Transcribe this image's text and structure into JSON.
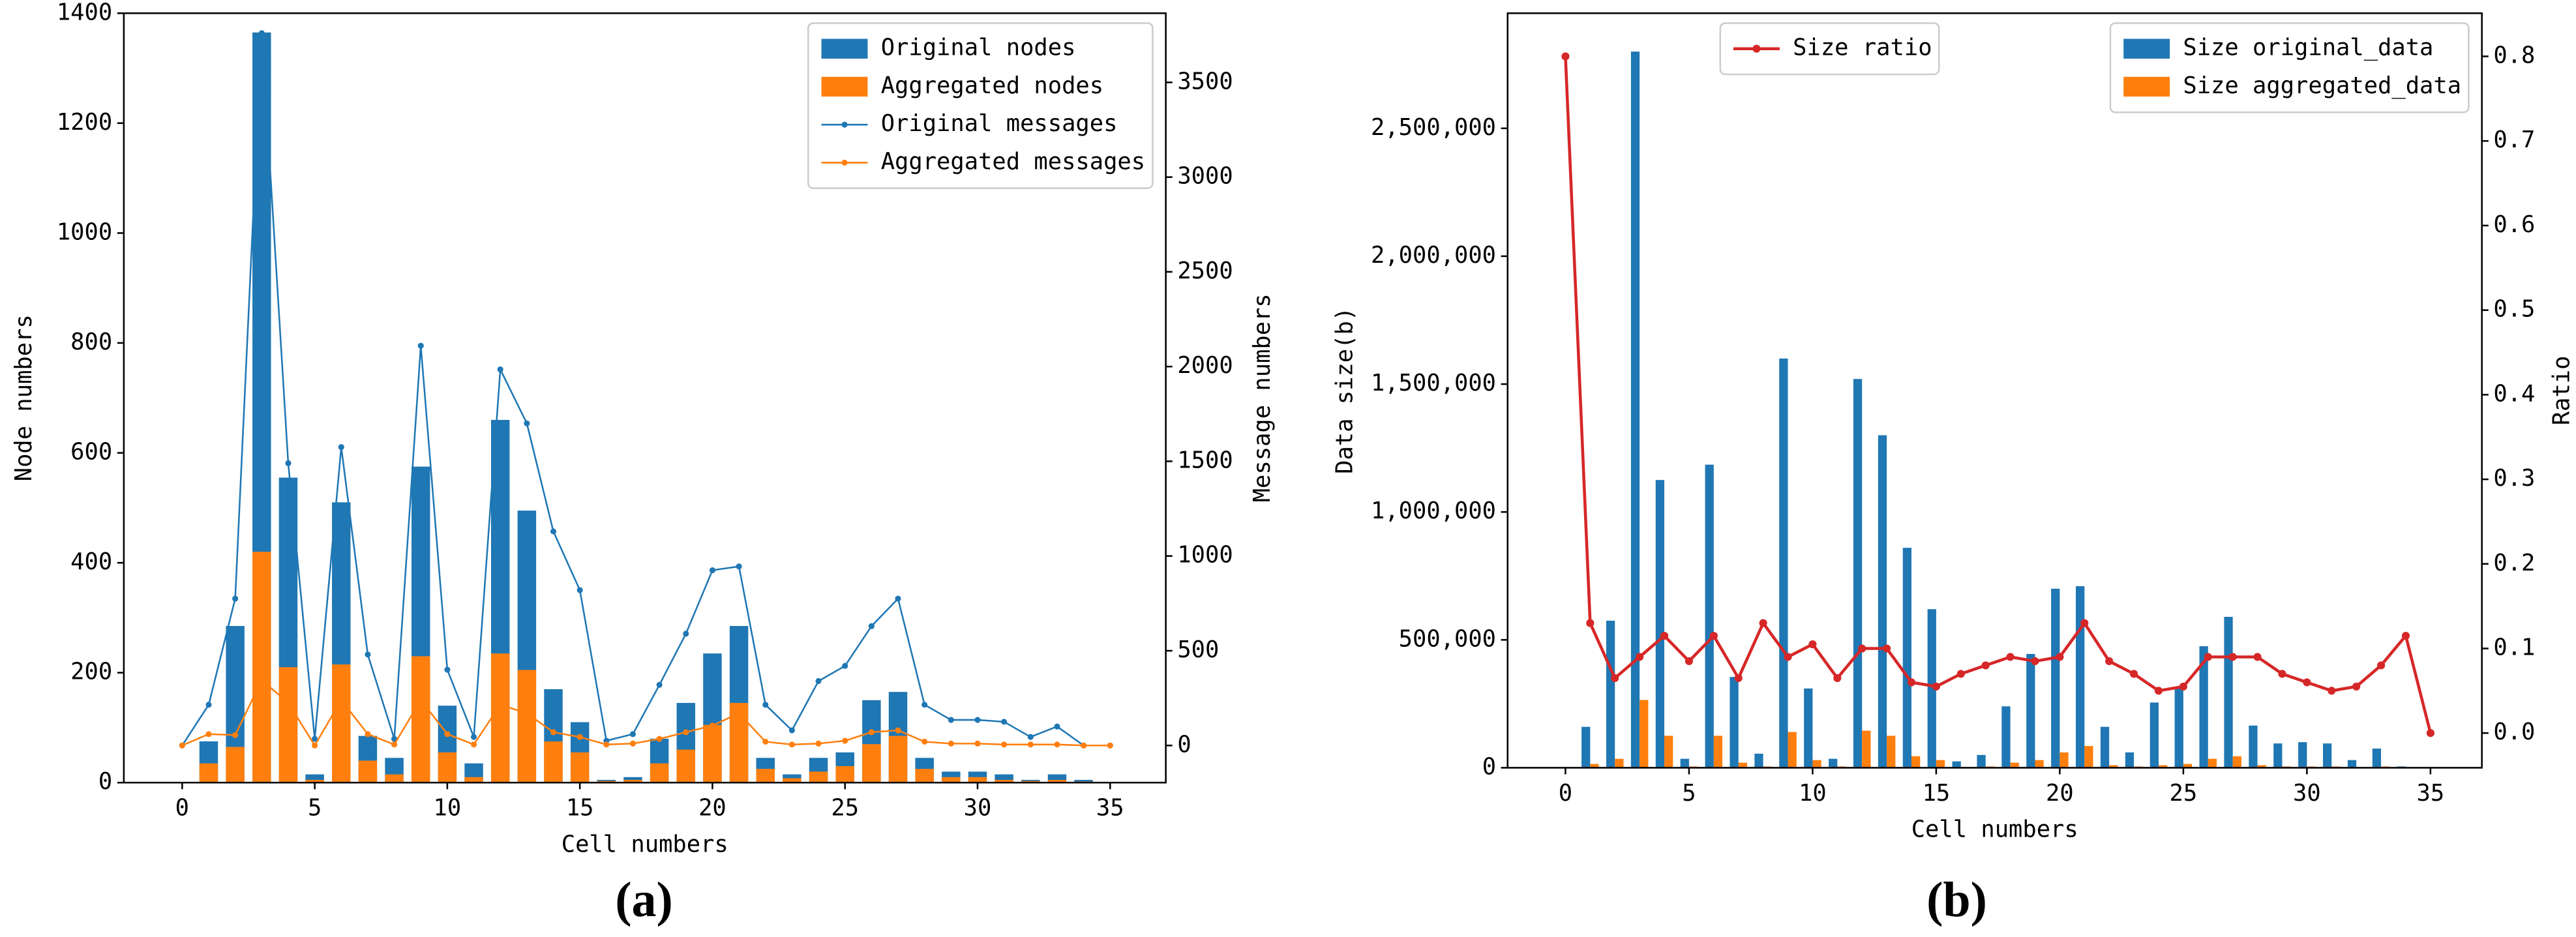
{
  "chart_data": [
    {
      "type": "bar",
      "bar_mode": "overlay",
      "caption": "(a)",
      "xlabel": "Cell numbers",
      "ylabel": "Node numbers",
      "y2label": "Message numbers",
      "x": [
        0,
        1,
        2,
        3,
        4,
        5,
        6,
        7,
        8,
        9,
        10,
        11,
        12,
        13,
        14,
        15,
        16,
        17,
        18,
        19,
        20,
        21,
        22,
        23,
        24,
        25,
        26,
        27,
        28,
        29,
        30,
        31,
        32,
        33,
        34,
        35
      ],
      "xlim": [
        -2.2,
        37.1
      ],
      "xticks": [
        0,
        5,
        10,
        15,
        20,
        25,
        30,
        35
      ],
      "ylim": [
        0,
        1400
      ],
      "yticks": [
        0,
        200,
        400,
        600,
        800,
        1000,
        1200,
        1400
      ],
      "y2lim": [
        -196,
        3865
      ],
      "y2ticks": [
        0,
        500,
        1000,
        1500,
        2000,
        2500,
        3000,
        3500
      ],
      "legend": "upper right",
      "series": [
        {
          "name": "Original nodes",
          "type": "bar",
          "color": "#1f77b4",
          "values": [
            0,
            75,
            285,
            1365,
            555,
            15,
            510,
            85,
            45,
            575,
            140,
            35,
            660,
            495,
            170,
            110,
            5,
            10,
            80,
            145,
            235,
            285,
            45,
            15,
            45,
            55,
            150,
            165,
            45,
            20,
            20,
            15,
            5,
            15,
            5,
            0
          ]
        },
        {
          "name": "Aggregated nodes",
          "type": "bar",
          "color": "#ff7f0e",
          "values": [
            0,
            35,
            65,
            420,
            210,
            5,
            215,
            40,
            15,
            230,
            55,
            10,
            235,
            205,
            75,
            55,
            3,
            5,
            35,
            60,
            105,
            145,
            25,
            8,
            20,
            30,
            70,
            85,
            25,
            10,
            10,
            5,
            3,
            5,
            2,
            0
          ]
        },
        {
          "name": "Original messages",
          "type": "line",
          "axis": "y2",
          "color": "#1f77b4",
          "values": [
            0,
            215,
            775,
            3760,
            1490,
            35,
            1575,
            480,
            35,
            2110,
            400,
            45,
            1985,
            1700,
            1130,
            820,
            25,
            60,
            320,
            590,
            925,
            945,
            215,
            80,
            340,
            420,
            630,
            775,
            215,
            135,
            135,
            125,
            45,
            100,
            0,
            0
          ]
        },
        {
          "name": "Aggregated messages",
          "type": "line",
          "axis": "y2",
          "color": "#ff7f0e",
          "values": [
            0,
            60,
            55,
            345,
            225,
            0,
            240,
            60,
            5,
            240,
            60,
            5,
            215,
            170,
            70,
            45,
            5,
            10,
            35,
            70,
            105,
            170,
            20,
            5,
            10,
            25,
            70,
            80,
            20,
            10,
            10,
            5,
            5,
            5,
            0,
            0
          ]
        }
      ]
    },
    {
      "type": "bar",
      "bar_mode": "grouped",
      "caption": "(b)",
      "xlabel": "Cell numbers",
      "ylabel": "Data size(b)",
      "y2label": "Ratio",
      "x": [
        0,
        1,
        2,
        3,
        4,
        5,
        6,
        7,
        8,
        9,
        10,
        11,
        12,
        13,
        14,
        15,
        16,
        17,
        18,
        19,
        20,
        21,
        22,
        23,
        24,
        25,
        26,
        27,
        28,
        29,
        30,
        31,
        32,
        33,
        34,
        35
      ],
      "xlim": [
        -2.34,
        37.08
      ],
      "xticks": [
        0,
        5,
        10,
        15,
        20,
        25,
        30,
        35
      ],
      "ylim": [
        0,
        2950000
      ],
      "yticks": [
        0,
        {
          "value": 500000,
          "label": "500,000"
        },
        {
          "value": 1000000,
          "label": "1,000,000"
        },
        {
          "value": 1500000,
          "label": "1,500,000"
        },
        {
          "value": 2000000,
          "label": "2,000,000"
        },
        {
          "value": 2500000,
          "label": "2,500,000"
        }
      ],
      "y2lim": [
        -0.041,
        0.851
      ],
      "y2ticks": [
        {
          "value": 0,
          "label": "0.0"
        },
        0.1,
        0.2,
        0.3,
        0.4,
        0.5,
        0.6,
        0.7,
        0.8
      ],
      "legend": "upper right",
      "line_legend": "upper center",
      "series": [
        {
          "name": "Size ratio",
          "type": "line",
          "axis": "y2",
          "color": "#d62728",
          "values": [
            0.8,
            0.13,
            0.065,
            0.09,
            0.115,
            0.085,
            0.115,
            0.065,
            0.13,
            0.09,
            0.105,
            0.065,
            0.1,
            0.1,
            0.06,
            0.055,
            0.07,
            0.08,
            0.09,
            0.085,
            0.09,
            0.13,
            0.085,
            0.07,
            0.05,
            0.055,
            0.09,
            0.09,
            0.09,
            0.07,
            0.06,
            0.05,
            0.055,
            0.08,
            0.115,
            0.0
          ]
        },
        {
          "name": "Size original_data",
          "type": "bar",
          "color": "#1f77b4",
          "values": [
            0,
            160000,
            575000,
            2800000,
            1125000,
            35000,
            1185000,
            355000,
            55000,
            1600000,
            310000,
            35000,
            1520000,
            1300000,
            860000,
            620000,
            25000,
            50000,
            240000,
            445000,
            700000,
            710000,
            160000,
            60000,
            255000,
            310000,
            475000,
            590000,
            165000,
            95000,
            100000,
            95000,
            30000,
            75000,
            5000,
            0
          ]
        },
        {
          "name": "Size aggregated_data",
          "type": "bar",
          "color": "#ff7f0e",
          "values": [
            0,
            15000,
            35000,
            265000,
            125000,
            5000,
            125000,
            20000,
            5000,
            140000,
            30000,
            5000,
            145000,
            125000,
            45000,
            30000,
            3000,
            5000,
            20000,
            30000,
            60000,
            85000,
            10000,
            5000,
            10000,
            15000,
            35000,
            45000,
            10000,
            5000,
            5000,
            5000,
            2000,
            5000,
            1000,
            0
          ]
        }
      ]
    }
  ]
}
